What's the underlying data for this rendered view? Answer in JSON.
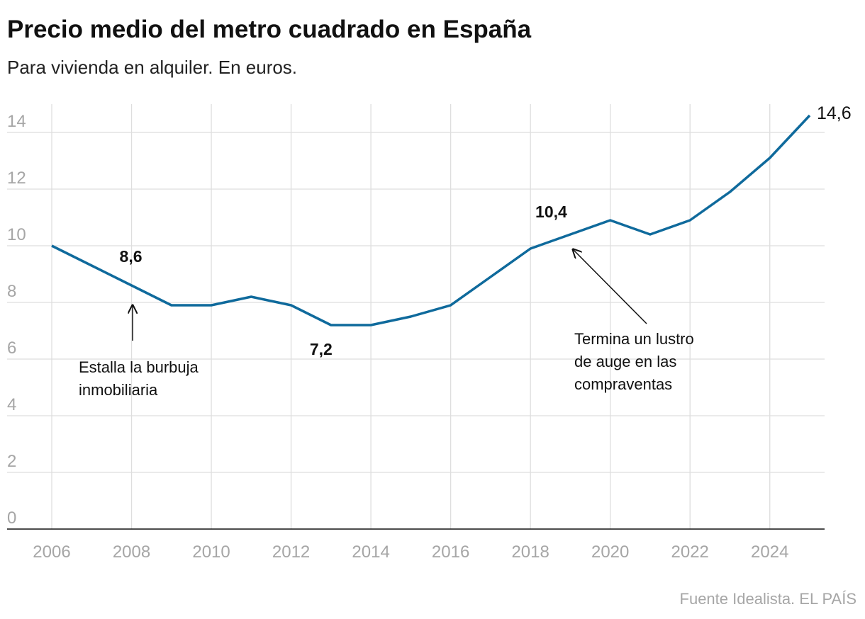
{
  "title": "Precio medio del metro cuadrado en España",
  "subtitle": "Para vivienda en alquiler. En euros.",
  "source": "Fuente Idealista. EL PAÍS",
  "chart_data": {
    "type": "line",
    "title": "Precio medio del metro cuadrado en España",
    "subtitle": "Para vivienda en alquiler. En euros.",
    "xlabel": "",
    "ylabel": "",
    "x": [
      2006,
      2007,
      2008,
      2009,
      2010,
      2011,
      2012,
      2013,
      2014,
      2015,
      2016,
      2017,
      2018,
      2019,
      2020,
      2021,
      2022,
      2023,
      2024,
      2025
    ],
    "series": [
      {
        "values": [
          10.0,
          9.3,
          8.6,
          7.9,
          7.9,
          8.2,
          7.9,
          7.2,
          7.2,
          7.5,
          7.9,
          8.9,
          9.9,
          10.4,
          10.9,
          10.4,
          10.9,
          11.9,
          13.1,
          14.6
        ],
        "color": "#0f6a9c"
      }
    ],
    "ylim": [
      0,
      14.5
    ],
    "xlim": [
      2006,
      2025
    ],
    "yticks": [
      "0",
      "2",
      "4",
      "6",
      "8",
      "10",
      "12",
      "14"
    ],
    "xticks": [
      "2006",
      "2008",
      "2010",
      "2012",
      "2014",
      "2016",
      "2018",
      "2020",
      "2022",
      "2024"
    ],
    "grid": true,
    "legend": "none",
    "data_labels": [
      {
        "x": 2008,
        "text": "8,6"
      },
      {
        "x": 2013,
        "text": "7,2"
      },
      {
        "x": 2019,
        "text": "10,4"
      },
      {
        "x": 2025,
        "text": "14,6"
      }
    ],
    "annotations": [
      {
        "x": 2008,
        "lines": [
          "Estalla la burbuja",
          "inmobiliaria"
        ]
      },
      {
        "x": 2019,
        "lines": [
          "Termina un lustro",
          "de auge en las",
          "compraventas"
        ]
      }
    ]
  }
}
